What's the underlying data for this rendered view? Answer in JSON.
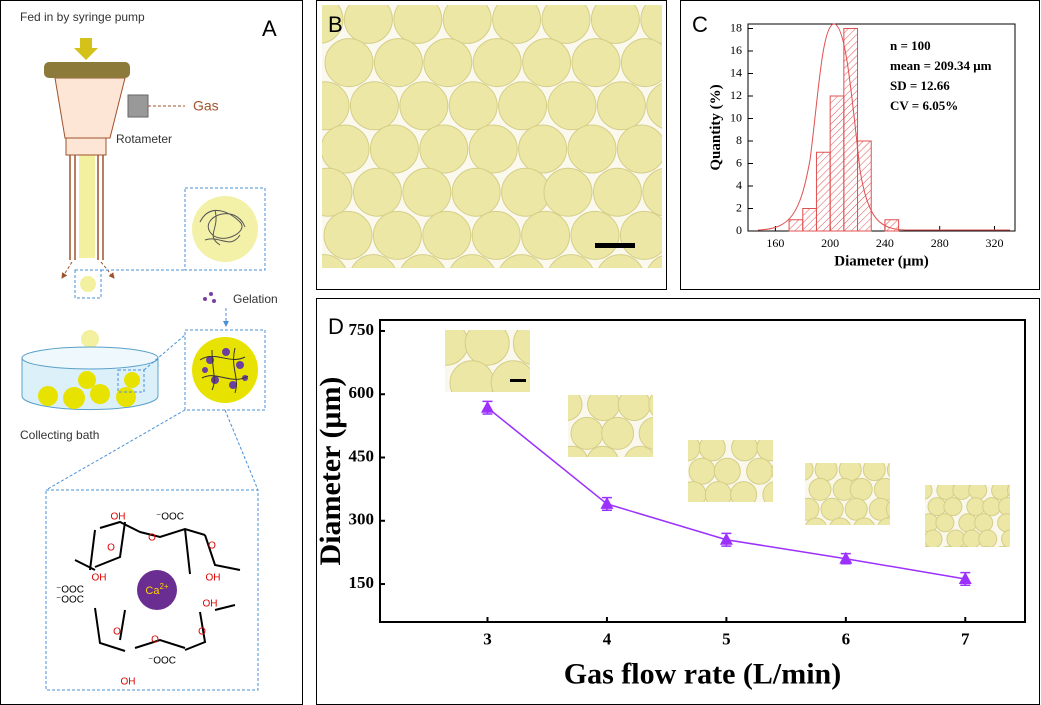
{
  "panel_labels": [
    "A",
    "B",
    "C",
    "D"
  ],
  "schematic": {
    "feed": "Fed in by syringe pump",
    "gas": "Gas",
    "rotameter": "Rotameter",
    "gelation": "Gelation",
    "bath": "Collecting bath",
    "ion_symbol": "Ca",
    "ion_charge": "2+",
    "molecule_labels": [
      "OH",
      "⁻OOC",
      "O",
      "O",
      "O",
      "OH",
      "OH",
      "⁻OOC",
      "⁻OOC",
      "OH",
      "O",
      "O",
      "O",
      "⁻OOC",
      "OH"
    ]
  },
  "chart_data": [
    {
      "type": "histogram",
      "bins": [
        170,
        180,
        190,
        200,
        210,
        220,
        230,
        240,
        250
      ],
      "values": [
        1,
        2,
        7,
        12,
        18,
        8,
        0,
        1
      ],
      "color": "#e05050",
      "xlim": [
        140,
        335
      ],
      "ylim": [
        0,
        18.4
      ],
      "xticks": [
        160,
        200,
        240,
        280,
        320
      ],
      "yticks": [
        0,
        2,
        4,
        6,
        8,
        10,
        12,
        14,
        16,
        18
      ],
      "xlabel": "Diameter (μm)",
      "ylabel": "Quantity (%)",
      "annotations": [
        "n = 100",
        "mean = 209.34 μm",
        "SD = 12.66",
        "CV = 6.05%"
      ]
    },
    {
      "type": "line",
      "x": [
        3,
        4,
        5,
        6,
        7
      ],
      "series": [
        {
          "values": [
            568,
            340,
            255,
            210,
            162
          ],
          "errors": [
            15,
            15,
            15,
            12,
            15
          ],
          "color": "#9b30ff"
        }
      ],
      "xlim": [
        2.1,
        7.5
      ],
      "ylim": [
        60,
        776
      ],
      "xticks": [
        3,
        4,
        5,
        6,
        7
      ],
      "yticks": [
        150,
        300,
        450,
        600,
        750
      ],
      "xlabel": "Gas flow rate (L/min)",
      "ylabel": "Diameter (μm)"
    }
  ]
}
